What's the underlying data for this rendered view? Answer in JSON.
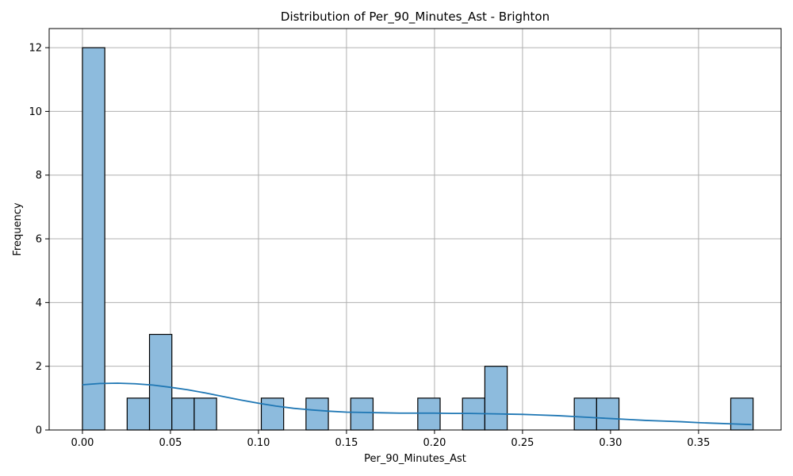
{
  "chart_data": {
    "type": "bar",
    "title": "Distribution of Per_90_Minutes_Ast - Brighton",
    "xlabel": "Per_90_Minutes_Ast",
    "ylabel": "Frequency",
    "xlim": [
      -0.0189,
      0.3969
    ],
    "ylim": [
      0,
      12.6
    ],
    "x_ticks": [
      0.0,
      0.05,
      0.1,
      0.15,
      0.2,
      0.25,
      0.3,
      0.35
    ],
    "x_tick_labels": [
      "0.00",
      "0.05",
      "0.10",
      "0.15",
      "0.20",
      "0.25",
      "0.30",
      "0.35"
    ],
    "y_ticks": [
      0,
      2,
      4,
      6,
      8,
      10,
      12
    ],
    "y_tick_labels": [
      "0",
      "2",
      "4",
      "6",
      "8",
      "10",
      "12"
    ],
    "grid": true,
    "bins": [
      {
        "x0": 0.0,
        "x1": 0.0127,
        "count": 12
      },
      {
        "x0": 0.0254,
        "x1": 0.0381,
        "count": 1
      },
      {
        "x0": 0.0381,
        "x1": 0.0508,
        "count": 3
      },
      {
        "x0": 0.0508,
        "x1": 0.0635,
        "count": 1
      },
      {
        "x0": 0.0635,
        "x1": 0.0762,
        "count": 1
      },
      {
        "x0": 0.1016,
        "x1": 0.1143,
        "count": 1
      },
      {
        "x0": 0.127,
        "x1": 0.1397,
        "count": 1
      },
      {
        "x0": 0.1524,
        "x1": 0.1651,
        "count": 1
      },
      {
        "x0": 0.1905,
        "x1": 0.2032,
        "count": 1
      },
      {
        "x0": 0.2159,
        "x1": 0.2286,
        "count": 1
      },
      {
        "x0": 0.2286,
        "x1": 0.2413,
        "count": 2
      },
      {
        "x0": 0.2794,
        "x1": 0.2921,
        "count": 1
      },
      {
        "x0": 0.2921,
        "x1": 0.3048,
        "count": 1
      },
      {
        "x0": 0.3683,
        "x1": 0.381,
        "count": 1
      }
    ],
    "kde": {
      "x": [
        0.0,
        0.01,
        0.02,
        0.03,
        0.04,
        0.05,
        0.06,
        0.07,
        0.08,
        0.09,
        0.1,
        0.11,
        0.12,
        0.13,
        0.14,
        0.15,
        0.16,
        0.17,
        0.18,
        0.19,
        0.2,
        0.21,
        0.22,
        0.23,
        0.24,
        0.25,
        0.26,
        0.27,
        0.28,
        0.29,
        0.3,
        0.31,
        0.32,
        0.33,
        0.34,
        0.35,
        0.36,
        0.37,
        0.38
      ],
      "y": [
        1.42,
        1.46,
        1.47,
        1.45,
        1.41,
        1.34,
        1.26,
        1.16,
        1.05,
        0.94,
        0.84,
        0.75,
        0.68,
        0.63,
        0.59,
        0.56,
        0.55,
        0.54,
        0.53,
        0.53,
        0.53,
        0.52,
        0.52,
        0.51,
        0.5,
        0.49,
        0.47,
        0.45,
        0.42,
        0.39,
        0.36,
        0.33,
        0.3,
        0.28,
        0.26,
        0.23,
        0.21,
        0.19,
        0.17
      ]
    },
    "colors": {
      "bar_fill": "#8dbbdd",
      "bar_edge": "#000000",
      "kde_line": "#1f77b4",
      "grid": "#b0b0b0"
    }
  }
}
